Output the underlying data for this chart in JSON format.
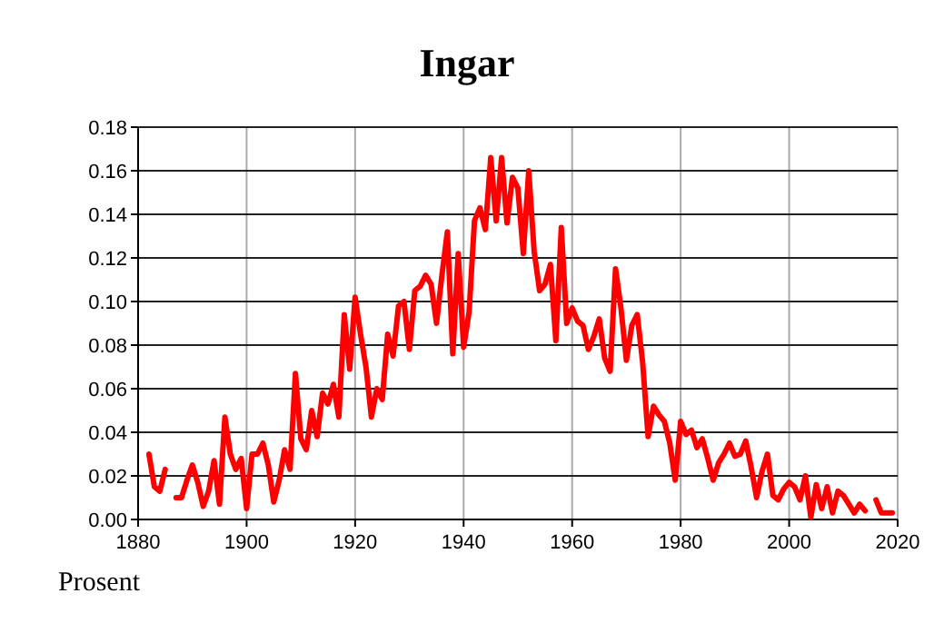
{
  "chart_data": {
    "type": "line",
    "title": "Ingar",
    "annotations": [
      "Prosent"
    ],
    "x": [
      1882,
      1883,
      1884,
      1885,
      1886,
      1887,
      1888,
      1889,
      1890,
      1891,
      1892,
      1893,
      1894,
      1895,
      1896,
      1897,
      1898,
      1899,
      1900,
      1901,
      1902,
      1903,
      1904,
      1905,
      1906,
      1907,
      1908,
      1909,
      1910,
      1911,
      1912,
      1913,
      1914,
      1915,
      1916,
      1917,
      1918,
      1919,
      1920,
      1921,
      1922,
      1923,
      1924,
      1925,
      1926,
      1927,
      1928,
      1929,
      1930,
      1931,
      1932,
      1933,
      1934,
      1935,
      1936,
      1937,
      1938,
      1939,
      1940,
      1941,
      1942,
      1943,
      1944,
      1945,
      1946,
      1947,
      1948,
      1949,
      1950,
      1951,
      1952,
      1953,
      1954,
      1955,
      1956,
      1957,
      1958,
      1959,
      1960,
      1961,
      1962,
      1963,
      1964,
      1965,
      1966,
      1967,
      1968,
      1969,
      1970,
      1971,
      1972,
      1973,
      1974,
      1975,
      1976,
      1977,
      1978,
      1979,
      1980,
      1981,
      1982,
      1983,
      1984,
      1985,
      1986,
      1987,
      1988,
      1989,
      1990,
      1991,
      1992,
      1993,
      1994,
      1995,
      1996,
      1997,
      1998,
      1999,
      2000,
      2001,
      2002,
      2003,
      2004,
      2005,
      2006,
      2007,
      2008,
      2009,
      2010,
      2011,
      2012,
      2013,
      2014,
      2015,
      2016,
      2017,
      2018,
      2019
    ],
    "series": [
      {
        "color": "#ff0000",
        "values": [
          0.03,
          0.015,
          0.013,
          0.023,
          null,
          0.01,
          0.01,
          0.018,
          0.025,
          0.017,
          0.006,
          0.013,
          0.027,
          0.007,
          0.047,
          0.03,
          0.023,
          0.028,
          0.005,
          0.03,
          0.03,
          0.035,
          0.025,
          0.008,
          0.018,
          0.032,
          0.023,
          0.067,
          0.037,
          0.032,
          0.05,
          0.038,
          0.058,
          0.053,
          0.062,
          0.047,
          0.094,
          0.069,
          0.102,
          0.085,
          0.07,
          0.047,
          0.06,
          0.055,
          0.085,
          0.075,
          0.098,
          0.1,
          0.078,
          0.105,
          0.107,
          0.112,
          0.108,
          0.09,
          0.112,
          0.132,
          0.076,
          0.122,
          0.079,
          0.095,
          0.137,
          0.143,
          0.133,
          0.166,
          0.137,
          0.166,
          0.136,
          0.157,
          0.152,
          0.122,
          0.16,
          0.123,
          0.105,
          0.108,
          0.117,
          0.082,
          0.134,
          0.09,
          0.097,
          0.091,
          0.089,
          0.078,
          0.084,
          0.092,
          0.074,
          0.068,
          0.115,
          0.097,
          0.073,
          0.089,
          0.094,
          0.072,
          0.038,
          0.052,
          0.048,
          0.045,
          0.035,
          0.018,
          0.045,
          0.039,
          0.041,
          0.033,
          0.037,
          0.028,
          0.018,
          0.026,
          0.03,
          0.035,
          0.029,
          0.03,
          0.036,
          0.024,
          0.01,
          0.022,
          0.03,
          0.011,
          0.009,
          0.014,
          0.017,
          0.015,
          0.009,
          0.02,
          0.001,
          0.016,
          0.005,
          0.015,
          0.003,
          0.013,
          0.011,
          0.007,
          0.003,
          0.007,
          0.004,
          null,
          0.009,
          0.003,
          0.003,
          0.003
        ]
      }
    ],
    "xlim": [
      1880,
      2020
    ],
    "xticks": [
      1880,
      1900,
      1920,
      1940,
      1960,
      1980,
      2000,
      2020
    ],
    "ylim": [
      0,
      0.18
    ],
    "yticks": [
      {
        "value": 0,
        "label": "0.00"
      },
      {
        "value": 0.02,
        "label": "0.02"
      },
      {
        "value": 0.04,
        "label": "0.04"
      },
      {
        "value": 0.06,
        "label": "0.06"
      },
      {
        "value": 0.08,
        "label": "0.08"
      },
      {
        "value": 0.1,
        "label": "0.10"
      },
      {
        "value": 0.12,
        "label": "0.12"
      },
      {
        "value": 0.14,
        "label": "0.14"
      },
      {
        "value": 0.16,
        "label": "0.16"
      },
      {
        "value": 0.18,
        "label": "0.18"
      }
    ],
    "grid": true,
    "marker": "none",
    "line_style": "solid"
  }
}
